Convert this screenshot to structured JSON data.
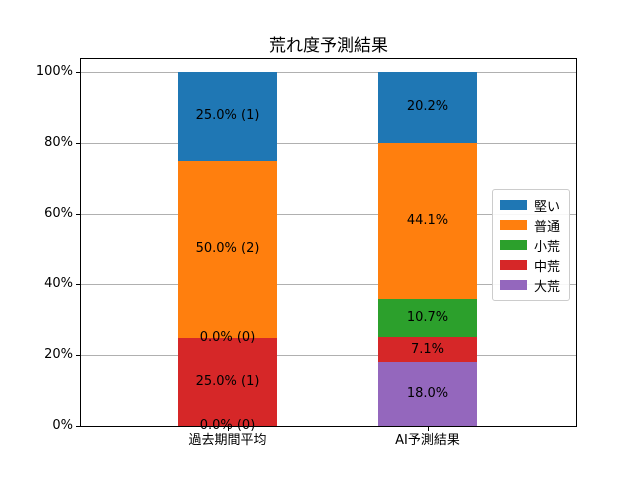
{
  "chart_data": {
    "type": "bar",
    "stacked": true,
    "percent_stacked": true,
    "title": "荒れ度予測結果",
    "categories": [
      "過去期間平均",
      "AI予測結果"
    ],
    "series": [
      {
        "name": "堅い",
        "color": "#1f77b4",
        "values": [
          25.0,
          20.2
        ],
        "labels": [
          "25.0% (1)",
          "20.2%"
        ]
      },
      {
        "name": "普通",
        "color": "#ff7f0e",
        "values": [
          50.0,
          44.1
        ],
        "labels": [
          "50.0% (2)",
          "44.1%"
        ]
      },
      {
        "name": "小荒",
        "color": "#2ca02c",
        "values": [
          0.0,
          10.7
        ],
        "labels": [
          "0.0% (0)",
          "10.7%"
        ]
      },
      {
        "name": "中荒",
        "color": "#d62728",
        "values": [
          25.0,
          7.1
        ],
        "labels": [
          "25.0% (1)",
          "7.1%"
        ]
      },
      {
        "name": "大荒",
        "color": "#9467bd",
        "values": [
          0.0,
          18.0
        ],
        "labels": [
          "0.0% (0)",
          "18.0%"
        ]
      }
    ],
    "stack_order_bottom_to_top": [
      "大荒",
      "中荒",
      "小荒",
      "普通",
      "堅い"
    ],
    "ylim": [
      0,
      100
    ],
    "yticks": [
      0,
      20,
      40,
      60,
      80,
      100
    ],
    "ytick_labels": [
      "0%",
      "20%",
      "40%",
      "60%",
      "80%",
      "100%"
    ],
    "xlabel": "",
    "ylabel": "",
    "grid": true,
    "grid_color": "#b0b0b0",
    "spine_color": "#000000",
    "label_color": "#000000",
    "legend": {
      "position": "center-right",
      "entries": [
        "堅い",
        "普通",
        "小荒",
        "中荒",
        "大荒"
      ]
    }
  }
}
